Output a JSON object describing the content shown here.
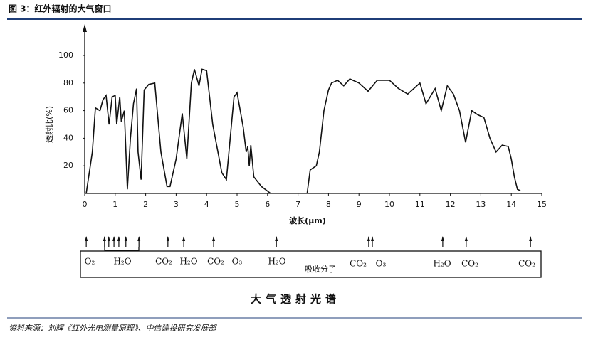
{
  "title": "图 3：红外辐射的大气窗口",
  "chart_data": {
    "type": "line",
    "ylabel": "透射比(%)",
    "xlabel": "波长(μm)",
    "x": [
      0.05,
      0.25,
      0.35,
      0.5,
      0.6,
      0.7,
      0.8,
      0.9,
      1.0,
      1.05,
      1.15,
      1.2,
      1.3,
      1.4,
      1.5,
      1.6,
      1.7,
      1.75,
      1.85,
      1.95,
      2.1,
      2.3,
      2.5,
      2.7,
      2.8,
      3.0,
      3.2,
      3.35,
      3.5,
      3.6,
      3.75,
      3.85,
      4.0,
      4.2,
      4.5,
      4.65,
      4.9,
      5.0,
      5.2,
      5.3,
      5.35,
      5.4,
      5.45,
      5.55,
      5.8,
      6.1,
      6.6,
      7.3,
      7.4,
      7.6,
      7.7,
      7.85,
      8.0,
      8.1,
      8.3,
      8.5,
      8.7,
      9.0,
      9.3,
      9.6,
      10.0,
      10.3,
      10.6,
      11.0,
      11.2,
      11.5,
      11.7,
      11.9,
      12.1,
      12.3,
      12.5,
      12.7,
      12.9,
      13.1,
      13.3,
      13.5,
      13.7,
      13.9,
      14.0,
      14.1,
      14.2,
      14.3
    ],
    "values": [
      0,
      30,
      62,
      60,
      68,
      71,
      50,
      70,
      71,
      50,
      70,
      52,
      60,
      3,
      40,
      65,
      76,
      30,
      10,
      75,
      79,
      80,
      30,
      5,
      5,
      25,
      58,
      25,
      80,
      90,
      78,
      90,
      89,
      50,
      15,
      10,
      70,
      73,
      48,
      30,
      34,
      20,
      35,
      12,
      5,
      0,
      null,
      0,
      17,
      20,
      30,
      60,
      75,
      80,
      82,
      78,
      83,
      80,
      74,
      82,
      82,
      76,
      72,
      80,
      65,
      76,
      60,
      78,
      72,
      60,
      37,
      60,
      57,
      55,
      40,
      30,
      35,
      34,
      25,
      12,
      3,
      2
    ],
    "color": "#111111",
    "xlim": [
      0,
      15
    ],
    "ylim": [
      0,
      100
    ],
    "xticks": [
      0,
      1,
      2,
      3,
      4,
      5,
      6,
      7,
      8,
      9,
      10,
      11,
      12,
      13,
      14,
      15
    ],
    "yticks": [
      20,
      40,
      60,
      80,
      100
    ],
    "absorption_lines": [
      0.05,
      0.65,
      0.79,
      0.96,
      1.12,
      1.35,
      1.78,
      2.73,
      3.25,
      4.23,
      6.29,
      9.32,
      9.44,
      11.75,
      12.52,
      14.63
    ],
    "molecules": [
      "O₂",
      "H₂O",
      "CO₂",
      "H₂O",
      "CO₂",
      "O₃",
      "H₂O",
      "吸收分子",
      "CO₂",
      "O₃",
      "H₂O",
      "CO₂",
      "CO₂"
    ],
    "caption": "大气透射光谱"
  },
  "source": "资料来源：刘辉《红外光电测量原理》、中信建投研究发展部"
}
